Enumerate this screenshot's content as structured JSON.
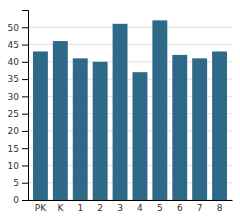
{
  "chart_data": {
    "type": "bar",
    "categories": [
      "PK",
      "K",
      "1",
      "2",
      "3",
      "4",
      "5",
      "6",
      "7",
      "8"
    ],
    "values": [
      43,
      46,
      41,
      40,
      51,
      37,
      52,
      42,
      41,
      43
    ],
    "color": "#2e6a87",
    "ylim": [
      0,
      55
    ],
    "yticks": [
      0,
      5,
      10,
      15,
      20,
      25,
      30,
      35,
      40,
      45,
      50
    ],
    "grid": true
  }
}
